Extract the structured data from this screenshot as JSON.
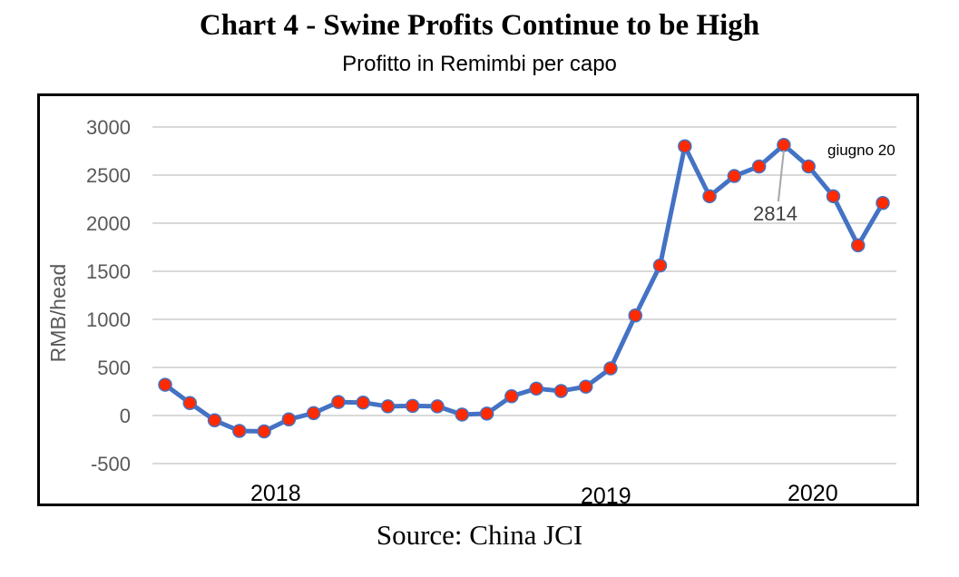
{
  "title": "Chart 4 - Swine Profits Continue to be High",
  "subtitle": "Profitto in Remimbi per capo",
  "source": "Source: China JCI",
  "chart_data": {
    "type": "line",
    "ylabel": "RMB/head",
    "ylim": [
      -500,
      3000
    ],
    "yticks": [
      3000,
      2500,
      2000,
      1500,
      1000,
      500,
      0,
      -500
    ],
    "grid": true,
    "x_year_labels": [
      "2018",
      "2019",
      "2020"
    ],
    "series": [
      {
        "values": [
          320,
          130,
          -50,
          -160,
          -165,
          -40,
          25,
          140,
          135,
          95,
          100,
          95,
          10,
          20,
          200,
          280,
          255,
          300,
          490,
          1040,
          1560,
          2800,
          2280,
          2490,
          2590,
          2814,
          2590,
          2280,
          1770,
          2210
        ]
      }
    ],
    "annotations": [
      {
        "text": "2814",
        "point_index": 25
      },
      {
        "text": "giugno 20"
      }
    ],
    "colors": {
      "line": "#4472C4",
      "marker": "#FF2A00",
      "grid": "#D9D9D9"
    }
  }
}
